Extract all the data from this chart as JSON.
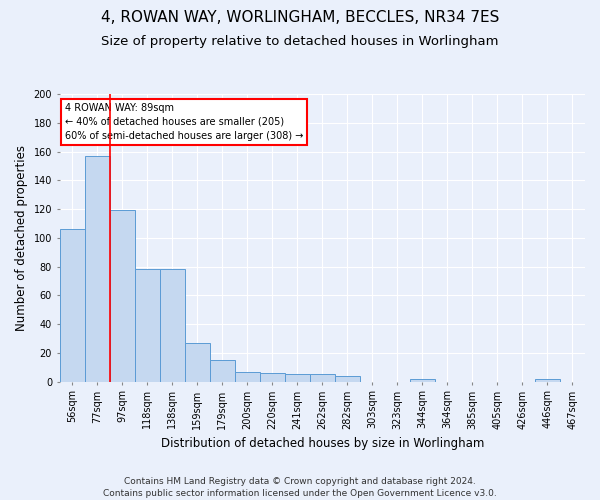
{
  "title": "4, ROWAN WAY, WORLINGHAM, BECCLES, NR34 7ES",
  "subtitle": "Size of property relative to detached houses in Worlingham",
  "xlabel": "Distribution of detached houses by size in Worlingham",
  "ylabel": "Number of detached properties",
  "categories": [
    "56sqm",
    "77sqm",
    "97sqm",
    "118sqm",
    "138sqm",
    "159sqm",
    "179sqm",
    "200sqm",
    "220sqm",
    "241sqm",
    "262sqm",
    "282sqm",
    "303sqm",
    "323sqm",
    "344sqm",
    "364sqm",
    "385sqm",
    "405sqm",
    "426sqm",
    "446sqm",
    "467sqm"
  ],
  "values": [
    106,
    157,
    119,
    78,
    78,
    27,
    15,
    7,
    6,
    5,
    5,
    4,
    0,
    0,
    2,
    0,
    0,
    0,
    0,
    2,
    0
  ],
  "bar_color": "#c5d8f0",
  "bar_edge_color": "#5b9bd5",
  "red_line_x": 1.5,
  "annotation_text": "4 ROWAN WAY: 89sqm\n← 40% of detached houses are smaller (205)\n60% of semi-detached houses are larger (308) →",
  "annotation_box_color": "white",
  "annotation_border_color": "red",
  "ylim": [
    0,
    200
  ],
  "yticks": [
    0,
    20,
    40,
    60,
    80,
    100,
    120,
    140,
    160,
    180,
    200
  ],
  "footer": "Contains HM Land Registry data © Crown copyright and database right 2024.\nContains public sector information licensed under the Open Government Licence v3.0.",
  "background_color": "#eaf0fb",
  "grid_color": "#ffffff",
  "title_fontsize": 11,
  "subtitle_fontsize": 9.5,
  "axis_label_fontsize": 8.5,
  "tick_fontsize": 7,
  "footer_fontsize": 6.5
}
